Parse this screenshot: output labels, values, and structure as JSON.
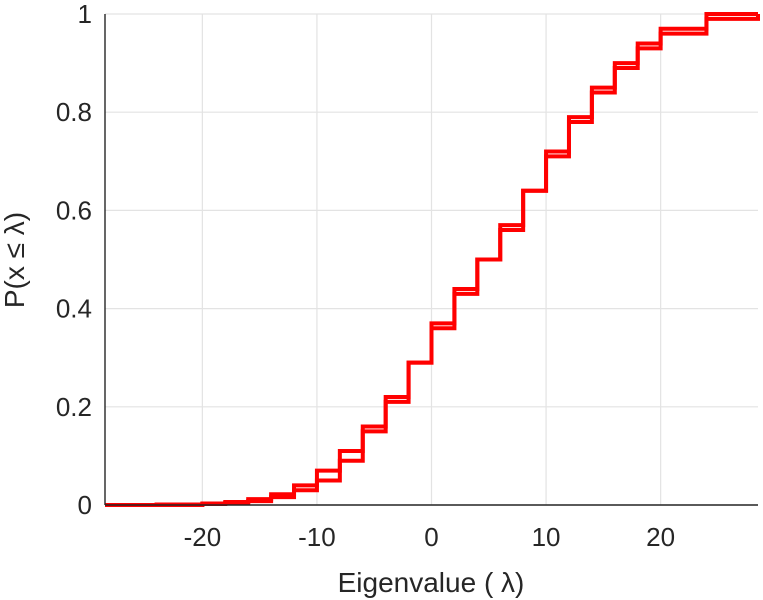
{
  "chart_data": {
    "type": "line",
    "xlabel": "Eigenvalue (  λ)",
    "ylabel": "P(x ≤ λ)",
    "xlim": [
      -28.5,
      28.5
    ],
    "ylim": [
      0,
      1
    ],
    "xticks": [
      -20,
      -10,
      0,
      10,
      20
    ],
    "yticks": [
      0,
      0.2,
      0.4,
      0.6,
      0.8,
      1
    ],
    "xtick_labels": [
      "-20",
      "-10",
      "0",
      "10",
      "20"
    ],
    "ytick_labels": [
      "0",
      "0.2",
      "0.4",
      "0.6",
      "0.8",
      "1"
    ],
    "grid": true,
    "line_color": "#ff0000",
    "series": [
      {
        "x": [
          -28.5,
          -24,
          -20,
          -18,
          -16,
          -14,
          -12,
          -10,
          -8,
          -6,
          -4,
          -2,
          0,
          2,
          4,
          6,
          8,
          10,
          12,
          14,
          16,
          18,
          20,
          24,
          28.5
        ],
        "y": [
          0.0,
          0.001,
          0.003,
          0.006,
          0.012,
          0.022,
          0.04,
          0.07,
          0.11,
          0.16,
          0.22,
          0.29,
          0.37,
          0.44,
          0.5,
          0.56,
          0.64,
          0.72,
          0.79,
          0.85,
          0.9,
          0.94,
          0.97,
          1.0,
          1.0
        ]
      },
      {
        "x": [
          -28.5,
          -24,
          -20,
          -18,
          -16,
          -14,
          -12,
          -10,
          -8,
          -6,
          -4,
          -2,
          0,
          2,
          4,
          6,
          8,
          10,
          12,
          14,
          16,
          18,
          20,
          24,
          28.5
        ],
        "y": [
          0.0,
          0.0,
          0.002,
          0.004,
          0.008,
          0.016,
          0.03,
          0.05,
          0.09,
          0.15,
          0.21,
          0.29,
          0.36,
          0.43,
          0.5,
          0.57,
          0.64,
          0.71,
          0.78,
          0.84,
          0.89,
          0.93,
          0.96,
          0.99,
          1.0
        ]
      }
    ]
  }
}
